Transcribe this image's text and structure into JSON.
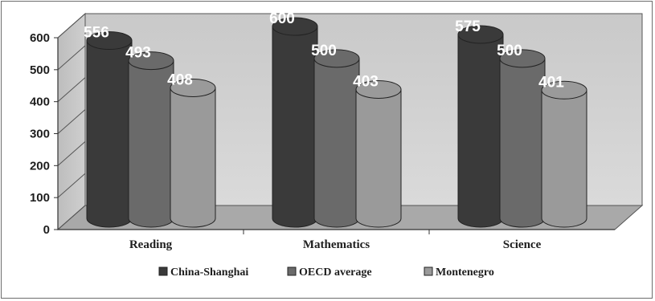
{
  "chart_data": {
    "type": "bar",
    "categories": [
      "Reading",
      "Mathematics",
      "Science"
    ],
    "series": [
      {
        "name": "China-Shanghai",
        "values": [
          556,
          600,
          575
        ],
        "color": "#3a3a3a"
      },
      {
        "name": "OECD average",
        "values": [
          493,
          500,
          500
        ],
        "color": "#6a6a6a"
      },
      {
        "name": "Montenegro",
        "values": [
          408,
          403,
          401
        ],
        "color": "#9a9a9a"
      }
    ],
    "ylim": [
      0,
      600
    ],
    "yticks": [
      0,
      100,
      200,
      300,
      400,
      500,
      600
    ],
    "grid": false,
    "legend_position": "bottom",
    "style": "3d-cylinder"
  }
}
